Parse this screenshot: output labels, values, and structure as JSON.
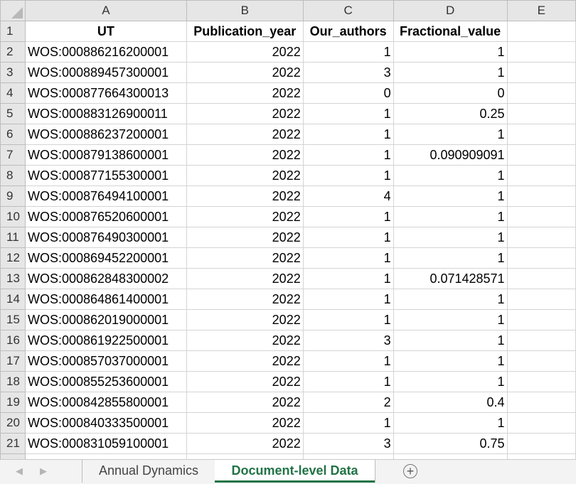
{
  "spreadsheet": {
    "columns": [
      "A",
      "B",
      "C",
      "D",
      "E"
    ],
    "header_row": {
      "row_number": "1",
      "cells": [
        "UT",
        "Publication_year",
        "Our_authors",
        "Fractional_value",
        ""
      ]
    },
    "rows": [
      {
        "n": "2",
        "ut": "WOS:000886216200001",
        "year": "2022",
        "authors": "1",
        "frac": "1"
      },
      {
        "n": "3",
        "ut": "WOS:000889457300001",
        "year": "2022",
        "authors": "3",
        "frac": "1"
      },
      {
        "n": "4",
        "ut": "WOS:000877664300013",
        "year": "2022",
        "authors": "0",
        "frac": "0"
      },
      {
        "n": "5",
        "ut": "WOS:000883126900011",
        "year": "2022",
        "authors": "1",
        "frac": "0.25"
      },
      {
        "n": "6",
        "ut": "WOS:000886237200001",
        "year": "2022",
        "authors": "1",
        "frac": "1"
      },
      {
        "n": "7",
        "ut": "WOS:000879138600001",
        "year": "2022",
        "authors": "1",
        "frac": "0.090909091"
      },
      {
        "n": "8",
        "ut": "WOS:000877155300001",
        "year": "2022",
        "authors": "1",
        "frac": "1"
      },
      {
        "n": "9",
        "ut": "WOS:000876494100001",
        "year": "2022",
        "authors": "4",
        "frac": "1"
      },
      {
        "n": "10",
        "ut": "WOS:000876520600001",
        "year": "2022",
        "authors": "1",
        "frac": "1"
      },
      {
        "n": "11",
        "ut": "WOS:000876490300001",
        "year": "2022",
        "authors": "1",
        "frac": "1"
      },
      {
        "n": "12",
        "ut": "WOS:000869452200001",
        "year": "2022",
        "authors": "1",
        "frac": "1"
      },
      {
        "n": "13",
        "ut": "WOS:000862848300002",
        "year": "2022",
        "authors": "1",
        "frac": "0.071428571"
      },
      {
        "n": "14",
        "ut": "WOS:000864861400001",
        "year": "2022",
        "authors": "1",
        "frac": "1"
      },
      {
        "n": "15",
        "ut": "WOS:000862019000001",
        "year": "2022",
        "authors": "1",
        "frac": "1"
      },
      {
        "n": "16",
        "ut": "WOS:000861922500001",
        "year": "2022",
        "authors": "3",
        "frac": "1"
      },
      {
        "n": "17",
        "ut": "WOS:000857037000001",
        "year": "2022",
        "authors": "1",
        "frac": "1"
      },
      {
        "n": "18",
        "ut": "WOS:000855253600001",
        "year": "2022",
        "authors": "1",
        "frac": "1"
      },
      {
        "n": "19",
        "ut": "WOS:000842855800001",
        "year": "2022",
        "authors": "2",
        "frac": "0.4"
      },
      {
        "n": "20",
        "ut": "WOS:000840333500001",
        "year": "2022",
        "authors": "1",
        "frac": "1"
      },
      {
        "n": "21",
        "ut": "WOS:000831059100001",
        "year": "2022",
        "authors": "3",
        "frac": "0.75"
      }
    ]
  },
  "sheet_tabs": {
    "tabs": [
      "Annual Dynamics",
      "Document-level Data"
    ],
    "active": "Document-level Data",
    "add_label": "+",
    "prev_arrow": "◀",
    "next_arrow": "▶"
  },
  "colors": {
    "accent": "#217346",
    "header_bg": "#e6e6e6",
    "gridline": "#d4d4d4"
  }
}
